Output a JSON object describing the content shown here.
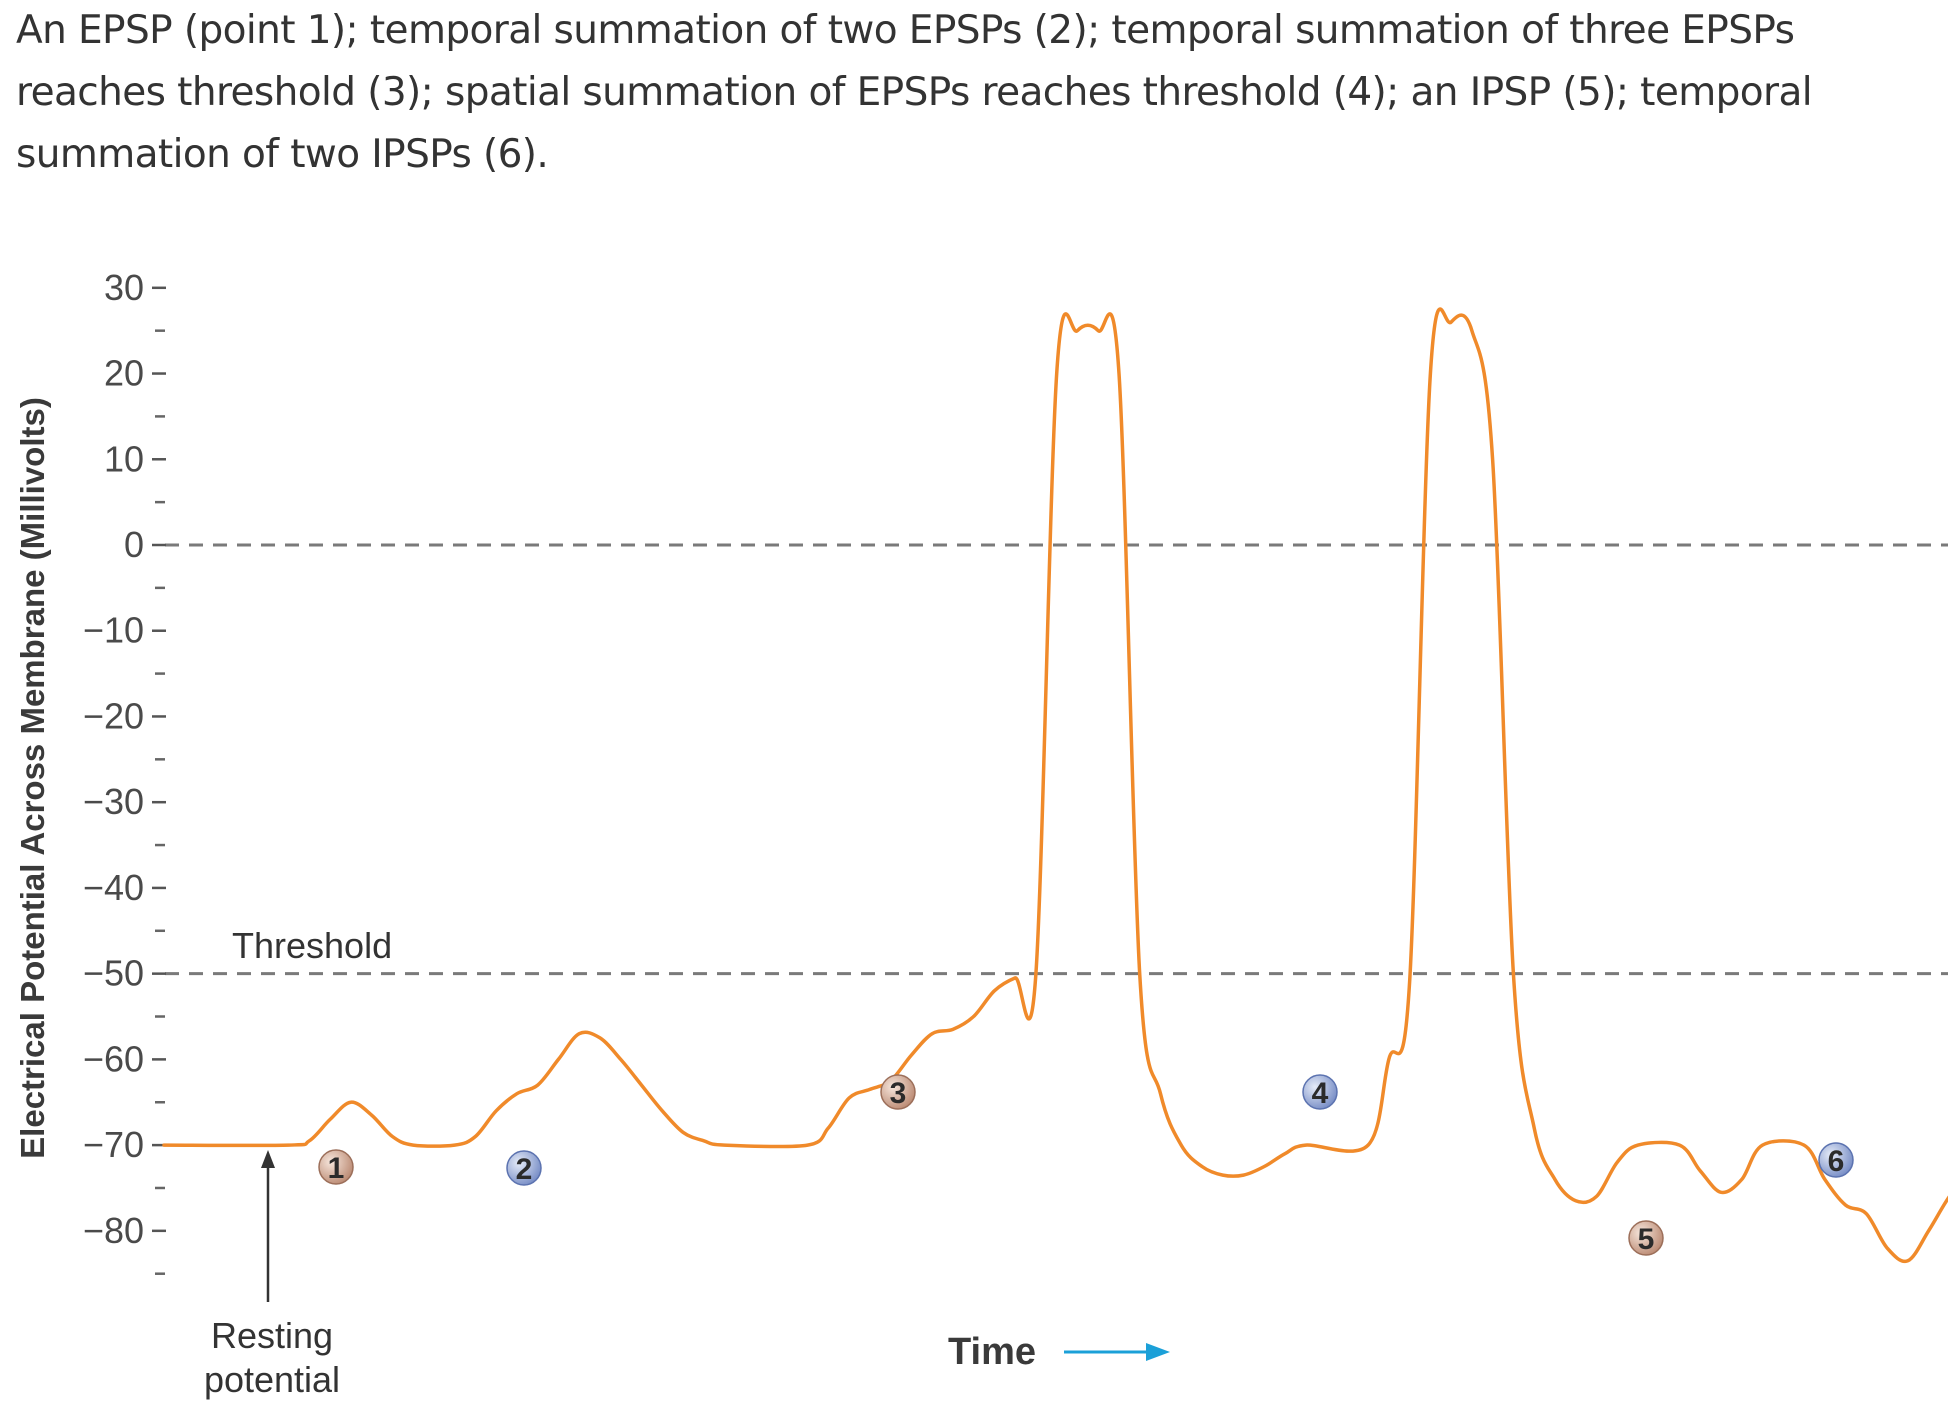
{
  "caption": "An EPSP (point 1); temporal summation of two EPSPs (2); temporal summation of three EPSPs reaches threshold (3); spatial summation of EPSPs reaches threshold (4); an IPSP (5); temporal summation of two IPSPs (6).",
  "chart_data": {
    "type": "line",
    "title": "",
    "ylabel": "Electrical Potential Across Membrane (Millivolts)",
    "xlabel": "Time",
    "ylim": [
      -85,
      30
    ],
    "yticks": [
      30,
      20,
      10,
      0,
      -10,
      -20,
      -30,
      -40,
      -50,
      -60,
      -70,
      -80
    ],
    "ytick_labels": [
      "30",
      "20",
      "10",
      "0",
      "−10",
      "−20",
      "−30",
      "−40",
      "−50",
      "−60",
      "−70",
      "−80"
    ],
    "reference_lines": [
      {
        "label": "",
        "value": 0,
        "style": "dashed"
      },
      {
        "label": "Threshold",
        "value": -50,
        "style": "dashed"
      }
    ],
    "annotations": {
      "resting": "Resting\npotential",
      "markers": [
        "1",
        "2",
        "3",
        "4",
        "5",
        "6"
      ]
    },
    "series": [
      {
        "values": [
          [
            0,
            -70
          ],
          [
            6,
            -70
          ],
          [
            7,
            -69.5
          ],
          [
            8,
            -67
          ],
          [
            9,
            -65
          ],
          [
            10,
            -66.5
          ],
          [
            11,
            -69
          ],
          [
            12,
            -70
          ],
          [
            14,
            -70
          ],
          [
            15,
            -69
          ],
          [
            16,
            -66
          ],
          [
            17,
            -64
          ],
          [
            18,
            -63
          ],
          [
            19,
            -60
          ],
          [
            20,
            -57
          ],
          [
            21,
            -57.5
          ],
          [
            22,
            -60
          ],
          [
            23,
            -63
          ],
          [
            24,
            -66
          ],
          [
            25,
            -68.5
          ],
          [
            26,
            -69.5
          ],
          [
            27,
            -70
          ],
          [
            31,
            -70
          ],
          [
            32,
            -68
          ],
          [
            33,
            -64.5
          ],
          [
            34,
            -63.5
          ],
          [
            35,
            -62.5
          ],
          [
            36,
            -59.5
          ],
          [
            37,
            -57
          ],
          [
            38,
            -56.5
          ],
          [
            39,
            -55
          ],
          [
            40,
            -52
          ],
          [
            41,
            -50.5
          ],
          [
            42,
            -50
          ],
          [
            43,
            20
          ],
          [
            44,
            25
          ],
          [
            45,
            25
          ],
          [
            46,
            20
          ],
          [
            47,
            -50
          ],
          [
            48,
            -64
          ],
          [
            49,
            -70
          ],
          [
            50,
            -72.5
          ],
          [
            51,
            -73.5
          ],
          [
            52,
            -73.5
          ],
          [
            53,
            -72.5
          ],
          [
            54,
            -71
          ],
          [
            55,
            -70
          ],
          [
            58,
            -70
          ],
          [
            59,
            -60
          ],
          [
            60,
            -51
          ],
          [
            61,
            20
          ],
          [
            62,
            26
          ],
          [
            63,
            25
          ],
          [
            64,
            10
          ],
          [
            65,
            -50
          ],
          [
            66,
            -68
          ],
          [
            67,
            -74
          ],
          [
            68,
            -76.5
          ],
          [
            69,
            -76
          ],
          [
            70,
            -72
          ],
          [
            71,
            -70
          ],
          [
            73,
            -70
          ],
          [
            74,
            -73
          ],
          [
            75,
            -75.5
          ],
          [
            76,
            -74
          ],
          [
            77,
            -70
          ],
          [
            79,
            -70
          ],
          [
            80,
            -74
          ],
          [
            81,
            -77
          ],
          [
            82,
            -78
          ],
          [
            83,
            -82
          ],
          [
            84,
            -83.5
          ],
          [
            85,
            -80
          ],
          [
            86,
            -76
          ],
          [
            87,
            -73
          ],
          [
            88,
            -71
          ],
          [
            89,
            -70
          ]
        ]
      }
    ]
  },
  "colors": {
    "trace": "#f08a2a",
    "dash": "#7a7a7a",
    "marker_a": "#c49078",
    "marker_b": "#7e93c8",
    "arrow": "#1ba0d8"
  },
  "icons": {
    "resting_arrow": "arrow-up-icon",
    "time_arrow": "arrow-right-icon"
  }
}
